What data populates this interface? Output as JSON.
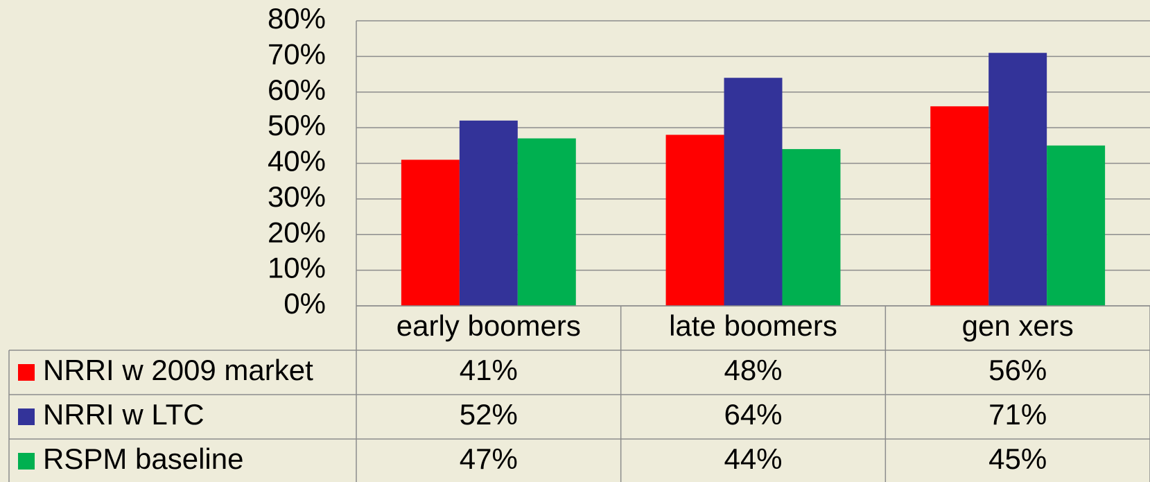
{
  "chart_data": {
    "type": "bar",
    "categories": [
      "early boomers",
      "late boomers",
      "gen xers"
    ],
    "series": [
      {
        "name": "NRRI w 2009 market",
        "color": "#ff0000",
        "values": [
          41,
          48,
          56
        ],
        "value_labels": [
          "41%",
          "48%",
          "56%"
        ]
      },
      {
        "name": "NRRI w LTC",
        "color": "#333399",
        "values": [
          52,
          64,
          71
        ],
        "value_labels": [
          "52%",
          "64%",
          "71%"
        ]
      },
      {
        "name": "RSPM baseline",
        "color": "#00b050",
        "values": [
          47,
          44,
          45
        ],
        "value_labels": [
          "47%",
          "44%",
          "45%"
        ]
      }
    ],
    "ylim": [
      0,
      80
    ],
    "yticks": [
      {
        "value": 0,
        "label": "0%"
      },
      {
        "value": 10,
        "label": "10%"
      },
      {
        "value": 20,
        "label": "20%"
      },
      {
        "value": 30,
        "label": "30%"
      },
      {
        "value": 40,
        "label": "40%"
      },
      {
        "value": 50,
        "label": "50%"
      },
      {
        "value": 60,
        "label": "60%"
      },
      {
        "value": 70,
        "label": "70%"
      },
      {
        "value": 80,
        "label": "80%"
      }
    ],
    "grid": true,
    "legend": "table"
  }
}
